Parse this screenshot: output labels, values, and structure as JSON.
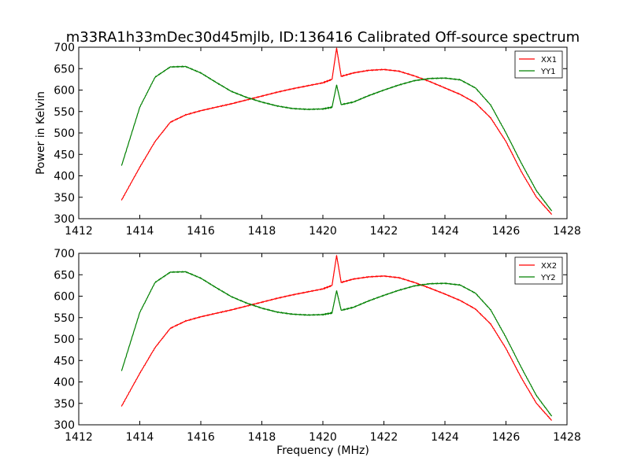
{
  "figure": {
    "title": "m33RA1h33mDec30d45mjlb, ID:136416 Calibrated Off-source spectrum",
    "xlabel": "Frequency (MHz)",
    "ylabel": "Power in Kelvin"
  },
  "chart_data": [
    {
      "type": "line",
      "title": "m33RA1h33mDec30d45mjlb, ID:136416 Calibrated Off-source spectrum",
      "xlabel": "",
      "ylabel": "Power in Kelvin",
      "xlim": [
        1412,
        1428
      ],
      "ylim": [
        300,
        700
      ],
      "xticks": [
        1412,
        1414,
        1416,
        1418,
        1420,
        1422,
        1424,
        1426,
        1428
      ],
      "yticks": [
        300,
        350,
        400,
        450,
        500,
        550,
        600,
        650,
        700
      ],
      "grid": false,
      "legend": "top-right",
      "x": [
        1413.4,
        1414.0,
        1414.5,
        1415.0,
        1415.5,
        1416.0,
        1416.5,
        1417.0,
        1417.5,
        1418.0,
        1418.5,
        1419.0,
        1419.5,
        1420.0,
        1420.3,
        1420.45,
        1420.6,
        1421.0,
        1421.5,
        1422.0,
        1422.5,
        1423.0,
        1423.5,
        1424.0,
        1424.5,
        1425.0,
        1425.5,
        1426.0,
        1426.5,
        1427.0,
        1427.5
      ],
      "series": [
        {
          "name": "XX1",
          "color": "#ff0000",
          "values": [
            343,
            420,
            480,
            525,
            542,
            552,
            560,
            568,
            577,
            586,
            595,
            603,
            610,
            617,
            625,
            698,
            632,
            640,
            646,
            648,
            644,
            633,
            620,
            605,
            590,
            570,
            535,
            480,
            410,
            350,
            310
          ]
        },
        {
          "name": "YY1",
          "color": "#008000",
          "values": [
            423,
            560,
            630,
            654,
            655,
            640,
            618,
            597,
            583,
            572,
            563,
            557,
            555,
            556,
            560,
            612,
            566,
            572,
            587,
            600,
            612,
            622,
            627,
            628,
            624,
            605,
            565,
            500,
            430,
            365,
            318
          ]
        }
      ]
    },
    {
      "type": "line",
      "title": "",
      "xlabel": "Frequency (MHz)",
      "ylabel": "",
      "xlim": [
        1412,
        1428
      ],
      "ylim": [
        300,
        700
      ],
      "xticks": [
        1412,
        1414,
        1416,
        1418,
        1420,
        1422,
        1424,
        1426,
        1428
      ],
      "yticks": [
        300,
        350,
        400,
        450,
        500,
        550,
        600,
        650,
        700
      ],
      "grid": false,
      "legend": "top-right",
      "x": [
        1413.4,
        1414.0,
        1414.5,
        1415.0,
        1415.5,
        1416.0,
        1416.5,
        1417.0,
        1417.5,
        1418.0,
        1418.5,
        1419.0,
        1419.5,
        1420.0,
        1420.3,
        1420.45,
        1420.6,
        1421.0,
        1421.5,
        1422.0,
        1422.5,
        1423.0,
        1423.5,
        1424.0,
        1424.5,
        1425.0,
        1425.5,
        1426.0,
        1426.5,
        1427.0,
        1427.5
      ],
      "series": [
        {
          "name": "XX2",
          "color": "#ff0000",
          "values": [
            343,
            420,
            480,
            525,
            542,
            552,
            560,
            568,
            577,
            586,
            595,
            603,
            610,
            617,
            625,
            695,
            632,
            640,
            645,
            647,
            643,
            632,
            619,
            605,
            590,
            570,
            535,
            478,
            410,
            350,
            310
          ]
        },
        {
          "name": "YY2",
          "color": "#008000",
          "values": [
            425,
            562,
            632,
            656,
            657,
            642,
            620,
            599,
            584,
            572,
            563,
            558,
            556,
            557,
            561,
            613,
            567,
            574,
            589,
            602,
            614,
            624,
            629,
            630,
            626,
            607,
            568,
            504,
            434,
            368,
            320
          ]
        }
      ]
    }
  ]
}
